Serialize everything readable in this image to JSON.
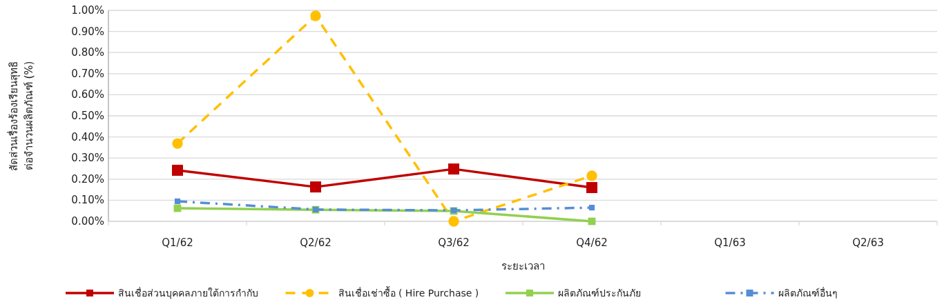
{
  "chart_data": {
    "type": "line",
    "xlabel": "ระยะเวลา",
    "ylabel": "สัดส่วนเรื่องร้องเรียนสุทธิ\nต่อจำนวนผลิตภัณฑ์ (%)",
    "categories": [
      "Q1/62",
      "Q2/62",
      "Q3/62",
      "Q4/62",
      "Q1/63",
      "Q2/63"
    ],
    "series": [
      {
        "name": "สินเชื่อส่วนบุคคลภายใต้การกำกับ",
        "color": "#c00000",
        "marker": "square",
        "line_style": "solid",
        "values": [
          0.242,
          0.163,
          0.248,
          0.16,
          null,
          null
        ]
      },
      {
        "name": "สินเชื่อเช่าซื้อ ( Hire Purchase )",
        "color": "#ffc000",
        "marker": "circle",
        "line_style": "dashed",
        "values": [
          0.369,
          0.974,
          0.0,
          0.216,
          null,
          null
        ]
      },
      {
        "name": "ผลิตภัณฑ์ประกันภัย",
        "color": "#92d050",
        "marker": "square",
        "line_style": "solid",
        "values": [
          0.062,
          0.055,
          0.049,
          0.0,
          null,
          null
        ]
      },
      {
        "name": "ผลิตภัณฑ์อื่นๆ",
        "color": "#558ed5",
        "marker": "square",
        "line_style": "dashdot",
        "values": [
          0.095,
          0.056,
          0.052,
          0.065,
          null,
          null
        ]
      }
    ],
    "ylim": [
      0,
      1
    ],
    "yticks": [
      {
        "value": 0,
        "label": "0.00%"
      },
      {
        "value": 0.1,
        "label": "0.10%"
      },
      {
        "value": 0.2,
        "label": "0.20%"
      },
      {
        "value": 0.3,
        "label": "0.30%"
      },
      {
        "value": 0.4,
        "label": "0.40%"
      },
      {
        "value": 0.5,
        "label": "0.50%"
      },
      {
        "value": 0.6,
        "label": "0.60%"
      },
      {
        "value": 0.7,
        "label": "0.70%"
      },
      {
        "value": 0.8,
        "label": "0.80%"
      },
      {
        "value": 0.9,
        "label": "0.90%"
      },
      {
        "value": 1,
        "label": "1.00%"
      }
    ],
    "grid": "y",
    "legend": "bottom"
  }
}
